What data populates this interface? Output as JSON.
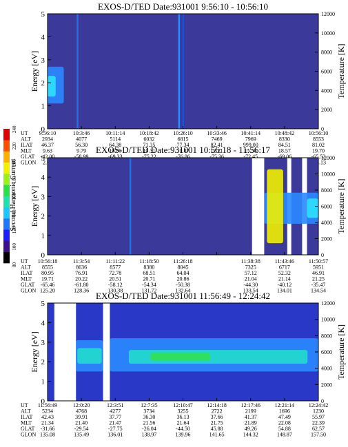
{
  "colorbar": {
    "label": "Second Harmonic Current",
    "ticks": [
      "80",
      "100",
      "120",
      "140",
      "160",
      "180",
      "200",
      "220",
      "240"
    ],
    "colors": [
      "#000000",
      "#3b0f8c",
      "#1c1cff",
      "#1e78ff",
      "#19c8ff",
      "#20e0b0",
      "#28e048",
      "#9af01a",
      "#f0f000",
      "#ffb000",
      "#ff5000",
      "#e00000"
    ]
  },
  "chart_data": [
    {
      "type": "heatmap",
      "title": "EXOS-D/TED   Date:931001  9:56:10 - 10:56:10",
      "ylabel": "Energy [eV]",
      "y2label": "Temperature [K]",
      "ylim": [
        0,
        5
      ],
      "y2lim": [
        0,
        12000
      ],
      "yticks": [
        "0",
        "1",
        "2",
        "3",
        "4",
        "5"
      ],
      "y2ticks": [
        "0",
        "2000",
        "4000",
        "6000",
        "8000",
        "10000",
        "12000"
      ],
      "background": "#3b3a9a",
      "features": [
        {
          "kind": "band",
          "x_from": 0.0,
          "x_to": 0.06,
          "y_from": 1.1,
          "y_to": 2.7,
          "color": "#2a8aff"
        },
        {
          "kind": "band",
          "x_from": 0.0,
          "x_to": 0.03,
          "y_from": 1.4,
          "y_to": 2.3,
          "color": "#2de0ff"
        },
        {
          "kind": "stripe",
          "x_at": 0.11,
          "color": "#2570e0"
        },
        {
          "kind": "stripe",
          "x_at": 0.485,
          "color": "#2a8aff"
        },
        {
          "kind": "stripe",
          "x_at": 0.5,
          "color": "#1e4fd0"
        }
      ],
      "table": {
        "rows": [
          "UT",
          "ALT",
          "ILAT",
          "MLT",
          "GLAT",
          "GLON"
        ],
        "values": [
          [
            "9:56:10",
            "10:3:46",
            "10:11:14",
            "10:18:42",
            "10:26:10",
            "10:33:46",
            "10:41:14",
            "10:48:42",
            "10:56:10"
          ],
          [
            "2934",
            "4077",
            "5114",
            "6032",
            "6815",
            "7469",
            "7969",
            "8330",
            "8553"
          ],
          [
            "46.37",
            "56.30",
            "64.38",
            "71.35",
            "77.34",
            "82.41",
            "999.00",
            "84.51",
            "81.02"
          ],
          [
            "9.63",
            "9.79",
            "10.00",
            "10.31",
            "10.87",
            "12.21",
            "15.58",
            "18.57",
            "19.70"
          ],
          [
            "-42.00",
            "-58.99",
            "-69.33",
            "-75.22",
            "-76.86",
            "-75.36",
            "-72.45",
            "-69.06",
            "-65.52"
          ],
          [
            "2.67",
            "11.25",
            "25.06",
            "47.17",
            "74.99",
            "98.07",
            "111.99",
            "120.17",
            "125.13"
          ]
        ]
      }
    },
    {
      "type": "heatmap",
      "title": "EXOS-D/TED   Date:931001  10:56:18 - 11:56:17",
      "ylabel": "Energy [eV]",
      "y2label": "Temperature [K]",
      "ylim": [
        0,
        5
      ],
      "y2lim": [
        0,
        12000
      ],
      "yticks": [
        "0",
        "1",
        "2",
        "3",
        "4",
        "5"
      ],
      "y2ticks": [
        "0",
        "2000",
        "4000",
        "6000",
        "8000",
        "10000",
        "12000"
      ],
      "background": "#3b3a9a",
      "features": [
        {
          "kind": "stripe",
          "x_at": 0.305,
          "color": "#2570e0"
        },
        {
          "kind": "gap",
          "x_from": 0.755,
          "x_to": 0.8
        },
        {
          "kind": "gap",
          "x_from": 0.885,
          "x_to": 0.9
        },
        {
          "kind": "gap",
          "x_from": 0.94,
          "x_to": 0.958
        },
        {
          "kind": "band",
          "x_from": 0.8,
          "x_to": 1.0,
          "y_from": 1.6,
          "y_to": 3.2,
          "color": "#2a8aff"
        },
        {
          "kind": "band",
          "x_from": 0.958,
          "x_to": 1.0,
          "y_from": 1.9,
          "y_to": 2.9,
          "color": "#2de0ff"
        },
        {
          "kind": "band",
          "x_from": 0.81,
          "x_to": 0.87,
          "y_from": 0.6,
          "y_to": 4.4,
          "color": "#f0f000"
        }
      ],
      "table": {
        "rows": [
          "UT",
          "ALT",
          "ILAT",
          "MLT",
          "GLAT",
          "GLON"
        ],
        "values": [
          [
            "10:56:18",
            "11:3:54",
            "11:11:22",
            "11:18:50",
            "11:26:18",
            "",
            "11:38:38",
            "11:43:46",
            "11:50:57"
          ],
          [
            "8555",
            "8636",
            "8577",
            "8380",
            "8045",
            "",
            "7325",
            "6717",
            "5951"
          ],
          [
            "80.95",
            "76.91",
            "72.78",
            "68.51",
            "64.04",
            "",
            "57.12",
            "52.32",
            "46.91"
          ],
          [
            "19.71",
            "20.22",
            "20.51",
            "20.71",
            "20.86",
            "",
            "21.04",
            "21.14",
            "21.25"
          ],
          [
            "-65.46",
            "-61.80",
            "-58.12",
            "-54.34",
            "-50.38",
            "",
            "-44.30",
            "-40.12",
            "-35.47"
          ],
          [
            "125.20",
            "128.36",
            "130.38",
            "131.72",
            "132.64",
            "",
            "133.54",
            "134.01",
            "134.54"
          ]
        ]
      }
    },
    {
      "type": "heatmap",
      "title": "EXOS-D/TED   Date:931001  11:56:49 - 12:24:42",
      "ylabel": "Energy [eV]",
      "y2label": "Temperature [K]",
      "ylim": [
        0,
        5
      ],
      "y2lim": [
        0,
        12000
      ],
      "yticks": [
        "0",
        "1",
        "2",
        "3",
        "4",
        "5"
      ],
      "y2ticks": [
        "0",
        "2000",
        "4000",
        "6000",
        "8000",
        "10000",
        "12000"
      ],
      "background": "#2a38c8",
      "features": [
        {
          "kind": "gap",
          "x_from": 0.025,
          "x_to": 0.105
        },
        {
          "kind": "gap",
          "x_from": 0.205,
          "x_to": 0.23
        },
        {
          "kind": "band",
          "x_from": 0.105,
          "x_to": 0.205,
          "y_from": 1.5,
          "y_to": 3.1,
          "color": "#2a8aff"
        },
        {
          "kind": "band",
          "x_from": 0.23,
          "x_to": 1.0,
          "y_from": 1.5,
          "y_to": 3.2,
          "color": "#2a8aff"
        },
        {
          "kind": "band",
          "x_from": 0.11,
          "x_to": 0.2,
          "y_from": 1.9,
          "y_to": 2.7,
          "color": "#22dccc"
        },
        {
          "kind": "band",
          "x_from": 0.3,
          "x_to": 0.96,
          "y_from": 1.9,
          "y_to": 2.6,
          "color": "#22dccc"
        },
        {
          "kind": "band",
          "x_from": 0.38,
          "x_to": 0.6,
          "y_from": 2.05,
          "y_to": 2.45,
          "color": "#32e050"
        }
      ],
      "table": {
        "rows": [
          "UT",
          "ALT",
          "ILAT",
          "MLT",
          "GLAT",
          "GLON"
        ],
        "values": [
          [
            "11:56:49",
            "12:0:20",
            "12:3:51",
            "12:7:35",
            "12:10:47",
            "12:14:18",
            "12:17:46",
            "12:21:14",
            "12:24:42"
          ],
          [
            "5234",
            "4768",
            "4277",
            "3734",
            "3255",
            "2722",
            "2199",
            "1696",
            "1230"
          ],
          [
            "42.43",
            "39.91",
            "37.77",
            "36.30",
            "36.13",
            "37.66",
            "41.37",
            "47.49",
            "55.97"
          ],
          [
            "21.34",
            "21.40",
            "21.47",
            "21.56",
            "21.64",
            "21.75",
            "21.89",
            "22.08",
            "22.39"
          ],
          [
            "-31.66",
            "-29.54",
            "-27.75",
            "-26.04",
            "-44.50",
            "45.88",
            "49.26",
            "54.88",
            "62.57"
          ],
          [
            "135.08",
            "135.49",
            "136.01",
            "138.97",
            "139.96",
            "141.65",
            "144.32",
            "148.87",
            "157.50"
          ]
        ]
      }
    }
  ]
}
